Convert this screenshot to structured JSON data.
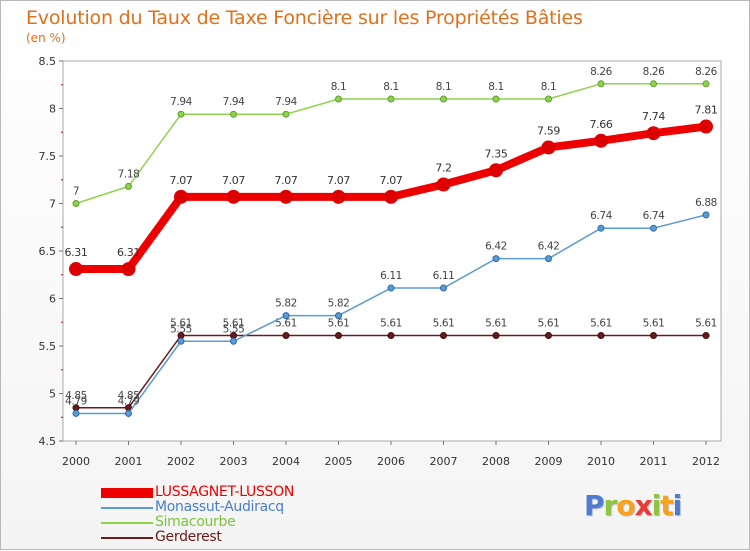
{
  "title": "Evolution du Taux de Taxe Foncière sur les Propriétés Bâties",
  "subtitle": "(en %)",
  "brand": {
    "letters": [
      "P",
      "r",
      "o",
      "x",
      "i",
      "t",
      "i"
    ],
    "colors": [
      "#4f7bd0",
      "#8cc63f",
      "#f7a21b",
      "#e53b3b",
      "#8cc63f",
      "#f7a21b",
      "#4f7bd0"
    ]
  },
  "chart_data": {
    "type": "line",
    "title": "Evolution du Taux de Taxe Foncière sur les Propriétés Bâties",
    "ylabel": "(en %)",
    "xlabel": "",
    "categories": [
      "2000",
      "2001",
      "2002",
      "2003",
      "2004",
      "2005",
      "2006",
      "2007",
      "2008",
      "2009",
      "2010",
      "2011",
      "2012"
    ],
    "ylim": [
      4.5,
      8.5
    ],
    "yticks": [
      "4.5",
      "5",
      "5.5",
      "6",
      "6.5",
      "7",
      "7.5",
      "8",
      "8.5"
    ],
    "series": [
      {
        "name": "Gerderest",
        "color": "#6b1a1a",
        "values": [
          4.85,
          4.85,
          5.61,
          5.61,
          5.61,
          5.61,
          5.61,
          5.61,
          5.61,
          5.61,
          5.61,
          5.61,
          5.61
        ],
        "labels": [
          "4.85",
          "4.85",
          "5.61",
          "5.61",
          "5.61",
          "5.61",
          "5.61",
          "5.61",
          "5.61",
          "5.61",
          "5.61",
          "5.61",
          "5.61"
        ]
      },
      {
        "name": "Monassut-Audiracq",
        "color": "#5b9bd5",
        "values": [
          4.79,
          4.79,
          5.55,
          5.55,
          5.82,
          5.82,
          6.11,
          6.11,
          6.42,
          6.42,
          6.74,
          6.74,
          6.88
        ],
        "labels": [
          "4.79",
          "4.79",
          "5.55",
          "5.55",
          "5.82",
          "5.82",
          "6.11",
          "6.11",
          "6.42",
          "6.42",
          "6.74",
          "6.74",
          "6.88"
        ]
      },
      {
        "name": "Simacourbe",
        "color": "#8ed34e",
        "values": [
          7.0,
          7.18,
          7.94,
          7.94,
          7.94,
          8.1,
          8.1,
          8.1,
          8.1,
          8.1,
          8.26,
          8.26,
          8.26
        ],
        "labels": [
          "7",
          "7.18",
          "7.94",
          "7.94",
          "7.94",
          "8.1",
          "8.1",
          "8.1",
          "8.1",
          "8.1",
          "8.26",
          "8.26",
          "8.26"
        ]
      },
      {
        "name": "LUSSAGNET-LUSSON",
        "color": "#ee0000",
        "values": [
          6.31,
          6.31,
          7.07,
          7.07,
          7.07,
          7.07,
          7.07,
          7.2,
          7.35,
          7.59,
          7.66,
          7.74,
          7.81
        ],
        "labels": [
          "6.31",
          "6.31",
          "7.07",
          "7.07",
          "7.07",
          "7.07",
          "7.07",
          "7.2",
          "7.35",
          "7.59",
          "7.66",
          "7.74",
          "7.81"
        ]
      }
    ],
    "legend": [
      "LUSSAGNET-LUSSON",
      "Monassut-Audiracq",
      "Simacourbe",
      "Gerderest"
    ],
    "legend_position": "bottom-left"
  }
}
